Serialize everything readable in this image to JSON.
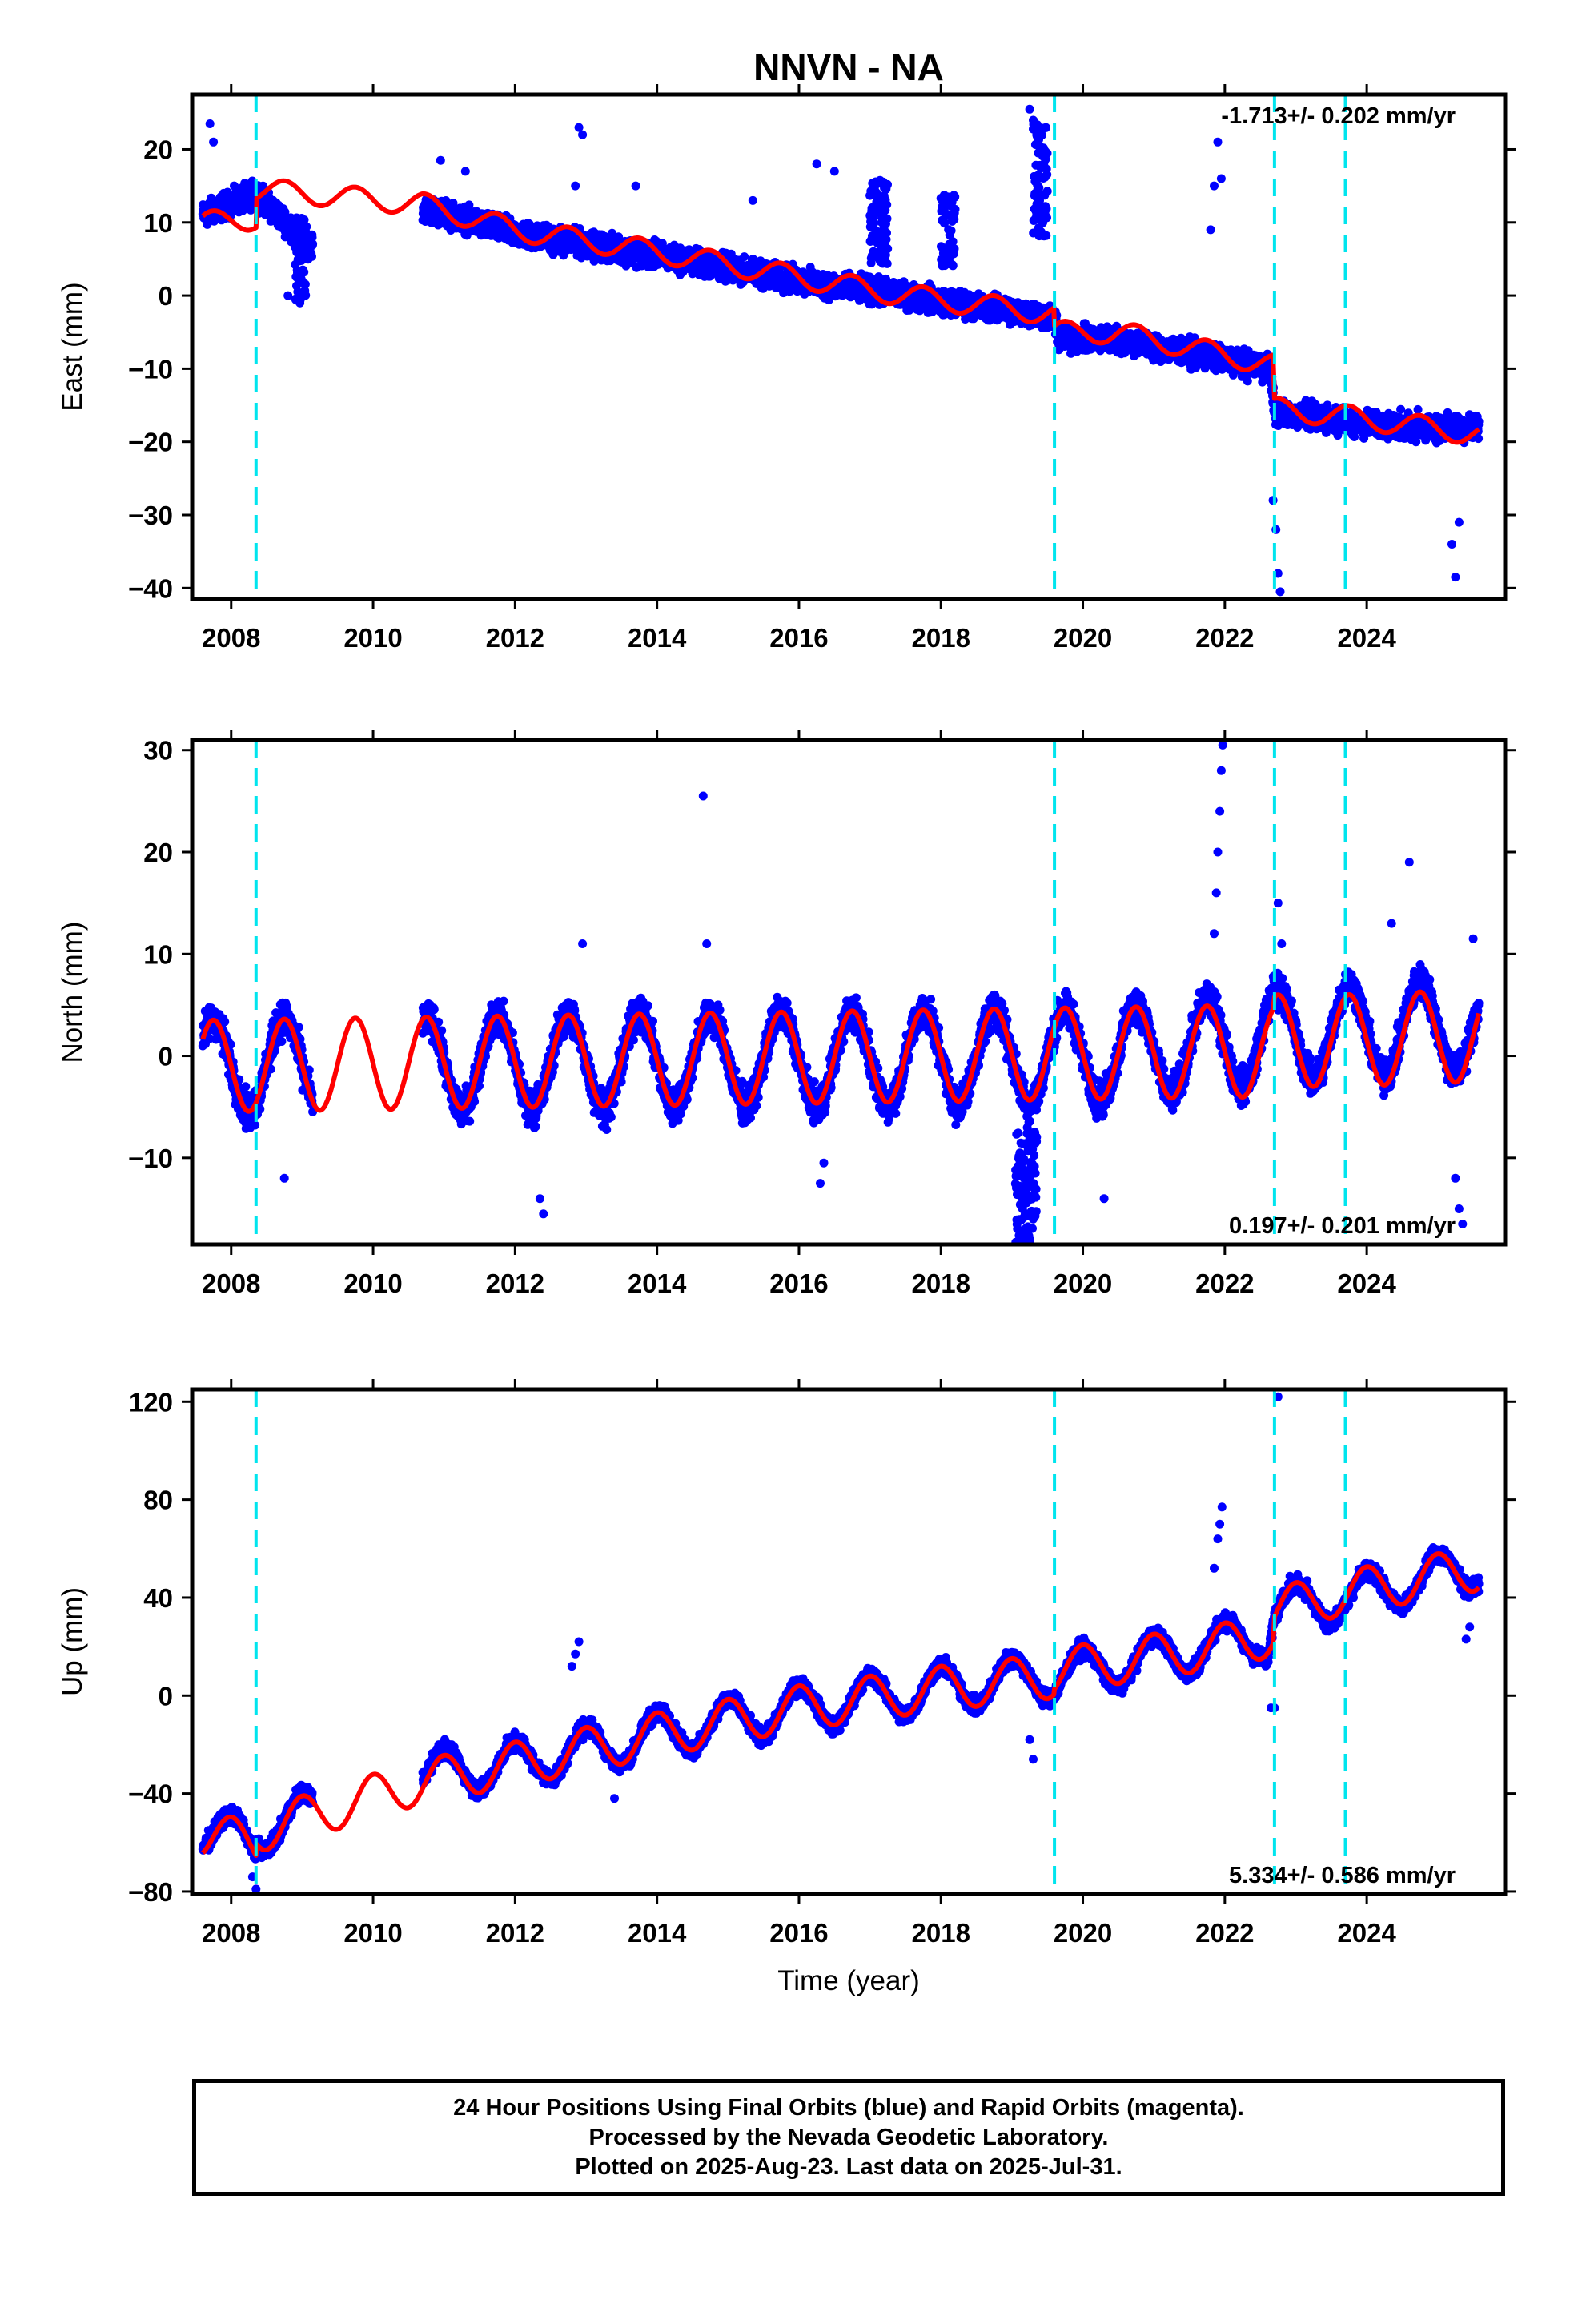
{
  "title": "NNVN - NA",
  "colors": {
    "points": "#0000ff",
    "model": "#ff0000",
    "offsets": "#00e5ee",
    "frame": "#000000"
  },
  "chart_data": [
    {
      "type": "scatter",
      "component": "east",
      "ylabel": "East (mm)",
      "xlabel": "",
      "xlim": [
        2007.45,
        2025.95
      ],
      "ylim": [
        -41.5,
        27.5
      ],
      "xticks": [
        2008,
        2010,
        2012,
        2014,
        2016,
        2018,
        2020,
        2022,
        2024
      ],
      "xtick_labels": [
        "2008",
        "2010",
        "2012",
        "2014",
        "2016",
        "2018",
        "2020",
        "2022",
        "2024"
      ],
      "yticks": [
        -40,
        -30,
        -20,
        -10,
        0,
        10,
        20
      ],
      "ytick_labels": [
        "−40",
        "−30",
        "−20",
        "−10",
        "0",
        "10",
        "20"
      ],
      "rate_label": "-1.713+/- 0.202 mm/yr",
      "rate_position": "top-right",
      "series": [
        {
          "label": "daily positions",
          "style": "dots",
          "segments": [
            [
              2007.6,
              2009.15
            ],
            [
              2010.7,
              2025.58
            ]
          ],
          "trend_points": [
            [
              2007.6,
              11
            ],
            [
              2008.35,
              14
            ],
            [
              2009.1,
              7
            ],
            [
              2010.7,
              12
            ],
            [
              2012.0,
              8.5
            ],
            [
              2014.0,
              5.5
            ],
            [
              2016.0,
              2
            ],
            [
              2017.5,
              0
            ],
            [
              2019.6,
              -3
            ],
            [
              2019.65,
              -6
            ],
            [
              2020.5,
              -6
            ],
            [
              2022.65,
              -10
            ],
            [
              2022.7,
              -16
            ],
            [
              2024.5,
              -18
            ],
            [
              2025.58,
              -18
            ]
          ],
          "scatter_amplitude": 2.5,
          "outliers": [
            [
              2007.7,
              23.5
            ],
            [
              2007.75,
              21
            ],
            [
              2008.8,
              0
            ],
            [
              2010.95,
              18.5
            ],
            [
              2011.3,
              17
            ],
            [
              2012.85,
              15
            ],
            [
              2012.9,
              23
            ],
            [
              2012.95,
              22
            ],
            [
              2013.7,
              15
            ],
            [
              2015.35,
              13
            ],
            [
              2016.25,
              18
            ],
            [
              2016.5,
              17
            ],
            [
              2017.05,
              15
            ],
            [
              2017.1,
              13
            ],
            [
              2019.25,
              25.5
            ],
            [
              2019.3,
              24
            ],
            [
              2019.35,
              22
            ],
            [
              2019.4,
              20
            ],
            [
              2019.45,
              18
            ],
            [
              2021.8,
              9
            ],
            [
              2021.85,
              15
            ],
            [
              2021.9,
              21
            ],
            [
              2021.95,
              16
            ],
            [
              2022.6,
              -8
            ],
            [
              2022.65,
              -13
            ],
            [
              2022.68,
              -28
            ],
            [
              2022.72,
              -32
            ],
            [
              2022.75,
              -38
            ],
            [
              2022.78,
              -40.5
            ],
            [
              2025.2,
              -34
            ],
            [
              2025.25,
              -38.5
            ],
            [
              2025.3,
              -31
            ]
          ],
          "clusters": [
            [
              2008.9,
              2009.05,
              5,
              6
            ],
            [
              2017.0,
              2017.25,
              10,
              6
            ],
            [
              2018.0,
              2018.2,
              9,
              5
            ],
            [
              2019.3,
              2019.5,
              16,
              8
            ]
          ]
        },
        {
          "label": "model",
          "style": "line",
          "x_range": [
            2007.6,
            2025.58
          ],
          "trend_points": [
            [
              2007.6,
              10
            ],
            [
              2008.35,
              10.5
            ],
            [
              2008.36,
              14.5
            ],
            [
              2009.0,
              14
            ],
            [
              2010.7,
              12.5
            ],
            [
              2012.0,
              9
            ],
            [
              2014.0,
              6
            ],
            [
              2016.0,
              2.5
            ],
            [
              2017.5,
              0
            ],
            [
              2019.59,
              -2.5
            ],
            [
              2019.6,
              -5
            ],
            [
              2020.5,
              -5
            ],
            [
              2022.68,
              -9.5
            ],
            [
              2022.7,
              -15.5
            ],
            [
              2023.7,
              -16.5
            ],
            [
              2025.58,
              -19
            ]
          ],
          "annual_amplitude": 1.5,
          "annual_phase": 0.5
        }
      ],
      "offset_epochs": [
        2008.35,
        2019.6,
        2022.7,
        2023.7
      ]
    },
    {
      "type": "scatter",
      "component": "north",
      "ylabel": "North (mm)",
      "xlabel": "",
      "xlim": [
        2007.45,
        2025.95
      ],
      "ylim": [
        -18.5,
        31
      ],
      "xticks": [
        2008,
        2010,
        2012,
        2014,
        2016,
        2018,
        2020,
        2022,
        2024
      ],
      "xtick_labels": [
        "2008",
        "2010",
        "2012",
        "2014",
        "2016",
        "2018",
        "2020",
        "2022",
        "2024"
      ],
      "yticks": [
        -10,
        0,
        10,
        20,
        30
      ],
      "ytick_labels": [
        "−10",
        "0",
        "10",
        "20",
        "30"
      ],
      "rate_label": "0.197+/- 0.201 mm/yr",
      "rate_position": "bottom-right",
      "series": [
        {
          "label": "daily positions",
          "style": "dots",
          "segments": [
            [
              2007.6,
              2009.15
            ],
            [
              2010.7,
              2025.58
            ]
          ],
          "trend_points": [
            [
              2007.6,
              -1
            ],
            [
              2020.0,
              0
            ],
            [
              2021.8,
              1
            ],
            [
              2022.7,
              2
            ],
            [
              2025.58,
              3
            ]
          ],
          "annual_amplitude": 4.5,
          "annual_phase": 0.5,
          "scatter_amplitude": 2.5,
          "outliers": [
            [
              2008.75,
              -12
            ],
            [
              2012.35,
              -14
            ],
            [
              2012.4,
              -15.5
            ],
            [
              2012.95,
              11
            ],
            [
              2014.65,
              25.5
            ],
            [
              2014.7,
              11
            ],
            [
              2016.3,
              -12.5
            ],
            [
              2016.35,
              -10.5
            ],
            [
              2019.1,
              -13
            ],
            [
              2019.15,
              -15
            ],
            [
              2019.2,
              -17
            ],
            [
              2019.25,
              -18
            ],
            [
              2019.3,
              -16
            ],
            [
              2020.3,
              -14
            ],
            [
              2021.85,
              12
            ],
            [
              2021.88,
              16
            ],
            [
              2021.9,
              20
            ],
            [
              2021.93,
              24
            ],
            [
              2021.95,
              28
            ],
            [
              2021.97,
              30.5
            ],
            [
              2022.75,
              15
            ],
            [
              2022.8,
              11
            ],
            [
              2024.35,
              13
            ],
            [
              2024.6,
              19
            ],
            [
              2025.25,
              -12
            ],
            [
              2025.3,
              -15
            ],
            [
              2025.35,
              -16.5
            ],
            [
              2025.5,
              11.5
            ]
          ],
          "clusters": [
            [
              2019.05,
              2019.35,
              -13,
              6
            ]
          ]
        },
        {
          "label": "model",
          "style": "line",
          "x_range": [
            2007.6,
            2025.58
          ],
          "trend_points": [
            [
              2007.6,
              -1
            ],
            [
              2022.68,
              0.5
            ],
            [
              2022.7,
              1.5
            ],
            [
              2023.7,
              1.5
            ],
            [
              2025.58,
              2
            ]
          ],
          "annual_amplitude": 4.5,
          "annual_phase": 0.5
        }
      ],
      "offset_epochs": [
        2008.35,
        2019.6,
        2022.7,
        2023.7
      ]
    },
    {
      "type": "scatter",
      "component": "up",
      "ylabel": "Up (mm)",
      "xlabel": "Time (year)",
      "xlim": [
        2007.45,
        2025.95
      ],
      "ylim": [
        -81,
        125
      ],
      "xticks": [
        2008,
        2010,
        2012,
        2014,
        2016,
        2018,
        2020,
        2022,
        2024
      ],
      "xtick_labels": [
        "2008",
        "2010",
        "2012",
        "2014",
        "2016",
        "2018",
        "2020",
        "2022",
        "2024"
      ],
      "yticks": [
        -80,
        -40,
        0,
        40,
        80,
        120
      ],
      "ytick_labels": [
        "−80",
        "−40",
        "0",
        "40",
        "80",
        "120"
      ],
      "rate_label": "5.334+/- 0.586 mm/yr",
      "rate_position": "bottom-right",
      "series": [
        {
          "label": "daily positions",
          "style": "dots",
          "segments": [
            [
              2007.6,
              2009.15
            ],
            [
              2010.7,
              2025.58
            ]
          ],
          "trend_points": [
            [
              2007.6,
              -55
            ],
            [
              2008.35,
              -60
            ],
            [
              2008.36,
              -55
            ],
            [
              2009.1,
              -48
            ],
            [
              2010.7,
              -32
            ],
            [
              2012.0,
              -28
            ],
            [
              2014.0,
              -16
            ],
            [
              2016.0,
              -5
            ],
            [
              2018.0,
              3
            ],
            [
              2020.0,
              10
            ],
            [
              2021.8,
              20
            ],
            [
              2022.5,
              25
            ],
            [
              2022.6,
              22
            ],
            [
              2022.7,
              35
            ],
            [
              2023.7,
              40
            ],
            [
              2025.58,
              53
            ]
          ],
          "annual_amplitude": 9,
          "annual_phase": 0.75,
          "scatter_amplitude": 5,
          "outliers": [
            [
              2008.3,
              -74
            ],
            [
              2008.35,
              -79
            ],
            [
              2012.8,
              12
            ],
            [
              2012.85,
              17
            ],
            [
              2012.9,
              22
            ],
            [
              2013.4,
              -42
            ],
            [
              2019.25,
              -18
            ],
            [
              2019.3,
              -26
            ],
            [
              2021.85,
              52
            ],
            [
              2021.9,
              64
            ],
            [
              2021.93,
              70
            ],
            [
              2021.96,
              77
            ],
            [
              2022.65,
              -5
            ],
            [
              2022.7,
              -5
            ],
            [
              2022.75,
              122
            ],
            [
              2025.4,
              23
            ],
            [
              2025.45,
              28
            ]
          ],
          "clusters": []
        },
        {
          "label": "model",
          "style": "line",
          "x_range": [
            2007.6,
            2025.58
          ],
          "trend_points": [
            [
              2007.6,
              -57
            ],
            [
              2008.35,
              -60
            ],
            [
              2008.36,
              -55
            ],
            [
              2009.0,
              -50
            ],
            [
              2010.7,
              -35
            ],
            [
              2012.0,
              -28
            ],
            [
              2014.0,
              -16
            ],
            [
              2016.0,
              -5
            ],
            [
              2018.0,
              3
            ],
            [
              2019.59,
              8
            ],
            [
              2019.6,
              10
            ],
            [
              2021.9,
              20
            ],
            [
              2022.68,
              25
            ],
            [
              2022.7,
              35
            ],
            [
              2023.7,
              42
            ],
            [
              2025.58,
              52
            ]
          ],
          "annual_amplitude": 9,
          "annual_phase": 0.75
        }
      ],
      "offset_epochs": [
        2008.35,
        2019.6,
        2022.7,
        2023.7
      ]
    }
  ],
  "footer": {
    "lines": [
      "24 Hour Positions Using Final Orbits (blue) and Rapid Orbits (magenta).",
      "Processed by the Nevada Geodetic Laboratory.",
      "Plotted on 2025-Aug-23. Last data on 2025-Jul-31."
    ]
  }
}
